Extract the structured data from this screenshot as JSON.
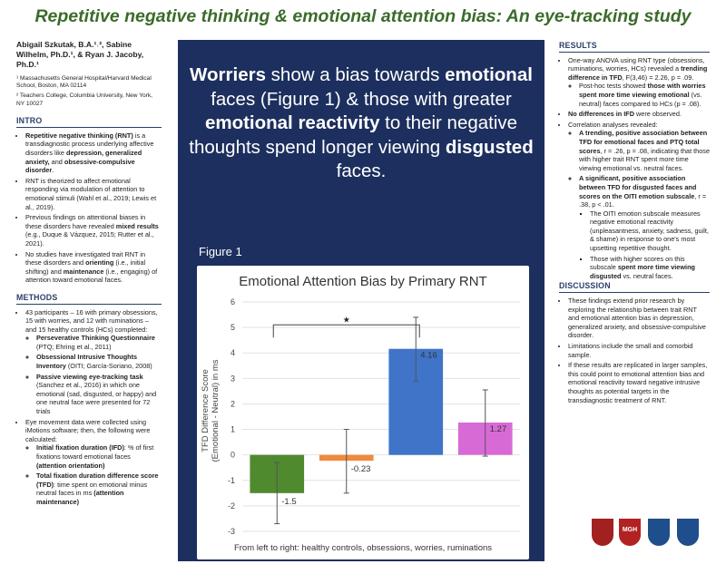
{
  "title": "Repetitive negative thinking & emotional attention bias: An eye-tracking study",
  "authors": {
    "names": "Abigail Szkutak, B.A.¹˒², Sabine Wilhelm, Ph.D.¹, & Ryan J. Jacoby, Ph.D.¹",
    "affiliations": [
      "¹ Massachusetts General Hospital/Harvard Medical School, Boston, MA 02114",
      "² Teachers College, Columbia University, New York, NY 10027"
    ]
  },
  "intro": {
    "heading": "INTRO",
    "b1_bold": "Repetitive negative thinking (RNT)",
    "b1_text": " is a transdiagnostic process underlying affective disorders like ",
    "b1_bold2": "depression, generalized anxiety, ",
    "b1_text2": "and ",
    "b1_bold3": "obsessive-compulsive disorder",
    "b1_end": ".",
    "b2": "RNT is theorized to affect emotional responding via modulation of attention to emotional stimuli (Wahl et al., 2019; Lewis et al., 2019).",
    "b3_text": "Previous findings on attentional biases in these disorders have revealed ",
    "b3_bold": "mixed results",
    "b3_end": " (e.g., Duque & Vázquez, 2015; Rutter et al., 2021).",
    "b4_text": "No studies have investigated trait RNT in these disorders and ",
    "b4_bold": "orienting",
    "b4_text2": " (i.e., initial shifting) and ",
    "b4_bold2": "maintenance",
    "b4_end": " (i.e., engaging) of attention toward emotional faces."
  },
  "methods": {
    "heading": "METHODS",
    "b1": "43 participants – 16 with primary obsessions, 15 with worries, and 12 with ruminations – and 15 healthy controls (HCs) completed:",
    "s1_bold": "Perseverative Thinking Questionnaire",
    "s1_text": " (PTQ; Ehring et al., 2011)",
    "s2_bold": "Obsessional Intrusive Thoughts Inventory",
    "s2_text": " (OITI; García-Soriano, 2008)",
    "s3_bold": "Passive viewing eye-tracking task",
    "s3_text": " (Sanchez et al., 2016) in which one emotional (sad, disgusted, or happy) and one neutral face were presented for 72 trials",
    "b2": "Eye movement data were collected using iMotions software; then, the following were calculated:",
    "s4_bold": "Initial fixation duration (IFD)",
    "s4_text": ": % of first fixations toward emotional faces ",
    "s4_bold2": "(attention orientation)",
    "s5_bold": "Total fixation duration difference score (TFD)",
    "s5_text": ": time spent on emotional minus neutral faces in ms ",
    "s5_bold2": "(attention maintenance)"
  },
  "headline": {
    "w1b": "Worriers",
    "w1": " show a bias towards ",
    "w2b": "emotional",
    "w2": " faces (Figure 1) & those with greater ",
    "w3b": "emotional reactivity",
    "w3": " to their negative thoughts spend longer viewing ",
    "w4b": "disgusted",
    "w4": " faces."
  },
  "figure_label": "Figure 1",
  "chart_data": {
    "type": "bar",
    "title": "Emotional Attention Bias by Primary RNT",
    "ylabel_line1": "TFD Difference Score",
    "ylabel_line2": "(Emotional - Neutral) in ms",
    "xlabel": "From left to right: healthy controls, obsessions, worries, ruminations",
    "categories": [
      "healthy controls",
      "obsessions",
      "worries",
      "ruminations"
    ],
    "values": [
      -1.5,
      -0.23,
      4.16,
      1.27
    ],
    "value_labels": [
      "-1.5",
      "-0.23",
      "4.16",
      "1.27"
    ],
    "error_low": [
      -2.7,
      -1.5,
      2.9,
      -0.05
    ],
    "error_high": [
      -0.3,
      1.0,
      5.4,
      2.55
    ],
    "colors": [
      "#4f8a2e",
      "#f08a3c",
      "#3f74c9",
      "#d86ad6"
    ],
    "ylim": [
      -3,
      6
    ],
    "yticks": [
      "-3",
      "-2",
      "-1",
      "0",
      "1",
      "2",
      "3",
      "4",
      "5",
      "6"
    ],
    "significance_marker": "★",
    "grid": true
  },
  "results": {
    "heading": "RESULTS",
    "b1_text": "One-way ANOVA using RNT type (obsessions, ruminations, worries, HCs) revealed a ",
    "b1_bold": "trending difference in TFD",
    "b1_text2": ", F(3,46) = 2.26, p = .09.",
    "s1_text": "Post-hoc tests showed ",
    "s1_bold": "those with worries spent more time viewing emotional",
    "s1_end": " (vs. neutral) faces compared to HCs (p = .08).",
    "b2_bold": "No differences in IFD",
    "b2_end": " were observed.",
    "b3": "Correlation analyses revealed:",
    "s2_bold": "A trending, positive association between TFD for emotional faces and PTQ total scores",
    "s2_end": ", r = .26, p = .08, indicating that those with higher trait RNT spent more time viewing emotional vs. neutral faces.",
    "s3_bold": "A significant, positive association between TFD for disgusted faces and scores on the OITI emotion subscale",
    "s3_end": ", r = .38, p < .01.",
    "t1": "The OITI emotion subscale measures negative emotional reactivity (unpleasantness, anxiety, sadness, guilt, & shame) in response to one's most upsetting repetitive thought.",
    "t2_text": "Those with higher scores on this subscale ",
    "t2_bold": "spent more time viewing disgusted",
    "t2_end": " vs. neutral faces."
  },
  "discussion": {
    "heading": "DISCUSSION",
    "b1": "These findings extend prior research by exploring the relationship between trait RNT and emotional attention bias in depression, generalized anxiety, and obsessive-compulsive disorder.",
    "b2": "Limitations include the small and comorbid sample.",
    "b3": "If these results are replicated in larger samples, this could point to emotional attention bias and emotional reactivity toward negative intrusive thoughts as potential targets in the transdiagnostic treatment of RNT."
  },
  "logos": [
    "MGH"
  ]
}
